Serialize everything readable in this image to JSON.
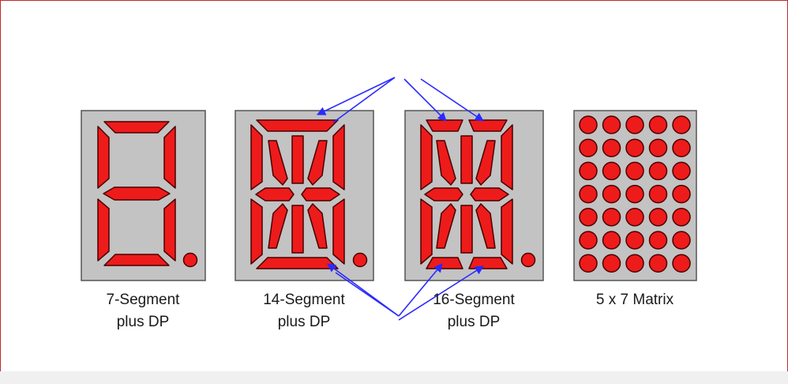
{
  "colors": {
    "frame": "#c0282d",
    "panel": "#c3c3c3",
    "segment": "#ee1b1b",
    "segment_stroke": "#4a0000",
    "arrow": "#2a2aff"
  },
  "displays": [
    {
      "line1": "7-Segment",
      "line2": "plus DP"
    },
    {
      "line1": "14-Segment",
      "line2": "plus DP"
    },
    {
      "line1": "16-Segment",
      "line2": "plus DP"
    },
    {
      "line1": "5 x 7 Matrix",
      "line2": ""
    }
  ]
}
